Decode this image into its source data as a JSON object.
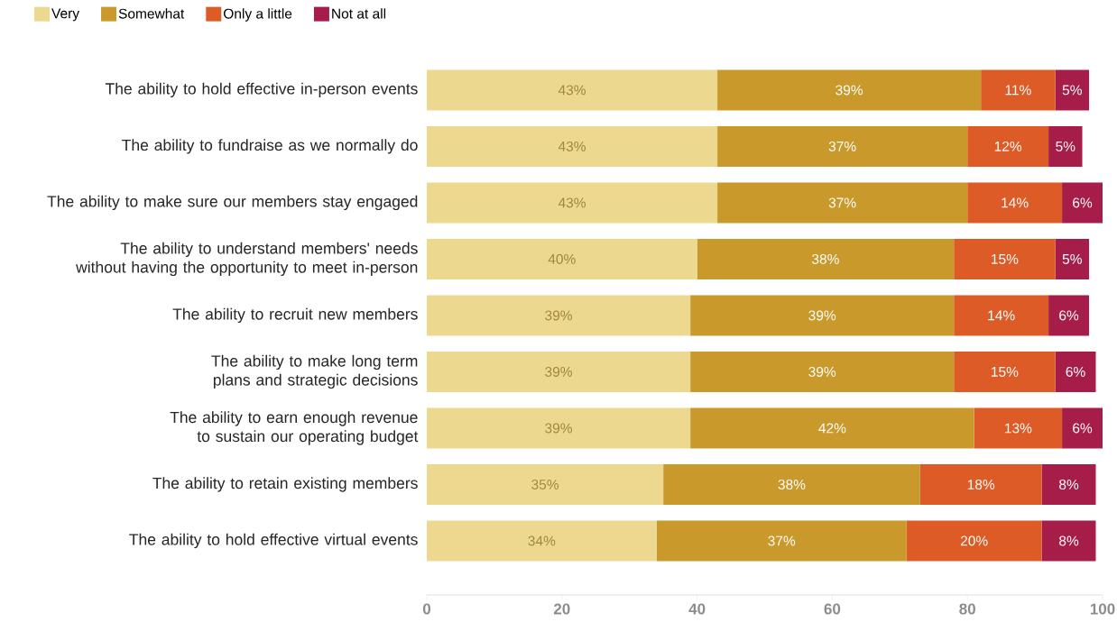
{
  "chart_data": {
    "type": "bar",
    "orientation": "horizontal",
    "stacked": true,
    "legend": "top left",
    "categories": [
      "The ability to hold effective in-person events",
      "The ability to fundraise as we normally do",
      "The ability to make sure our members stay engaged",
      "The ability to understand members' needs without having the opportunity to meet in-person",
      "The ability to recruit new members",
      "The ability to make long term plans and strategic decisions",
      "The ability to earn enough revenue to sustain our operating budget",
      "The ability to retain existing members",
      "The ability to hold effective virtual events"
    ],
    "series": [
      {
        "name": "Very",
        "color": "#ecd98f",
        "values": [
          43,
          43,
          43,
          40,
          39,
          39,
          39,
          35,
          34
        ],
        "value_labels": [
          "43%",
          "43%",
          "43%",
          "40%",
          "39%",
          "39%",
          "39%",
          "35%",
          "34%"
        ]
      },
      {
        "name": "Somewhat",
        "color": "#c9992c",
        "values": [
          39,
          37,
          37,
          38,
          39,
          39,
          42,
          38,
          37
        ],
        "value_labels": [
          "39%",
          "37%",
          "37%",
          "38%",
          "39%",
          "39%",
          "42%",
          "38%",
          "37%"
        ]
      },
      {
        "name": "Only a little",
        "color": "#dd5b27",
        "values": [
          11,
          12,
          14,
          15,
          14,
          15,
          13,
          18,
          20
        ],
        "value_labels": [
          "11%",
          "12%",
          "14%",
          "15%",
          "14%",
          "15%",
          "13%",
          "18%",
          "20%"
        ]
      },
      {
        "name": "Not at all",
        "color": "#a61d4a",
        "values": [
          5,
          5,
          6,
          5,
          6,
          6,
          6,
          8,
          8
        ],
        "value_labels": [
          "5%",
          "5%",
          "6%",
          "5%",
          "6%",
          "6%",
          "6%",
          "8%",
          "8%"
        ]
      }
    ],
    "xlim": [
      0,
      100
    ],
    "xticks": [
      0,
      20,
      40,
      60,
      80,
      100
    ]
  }
}
